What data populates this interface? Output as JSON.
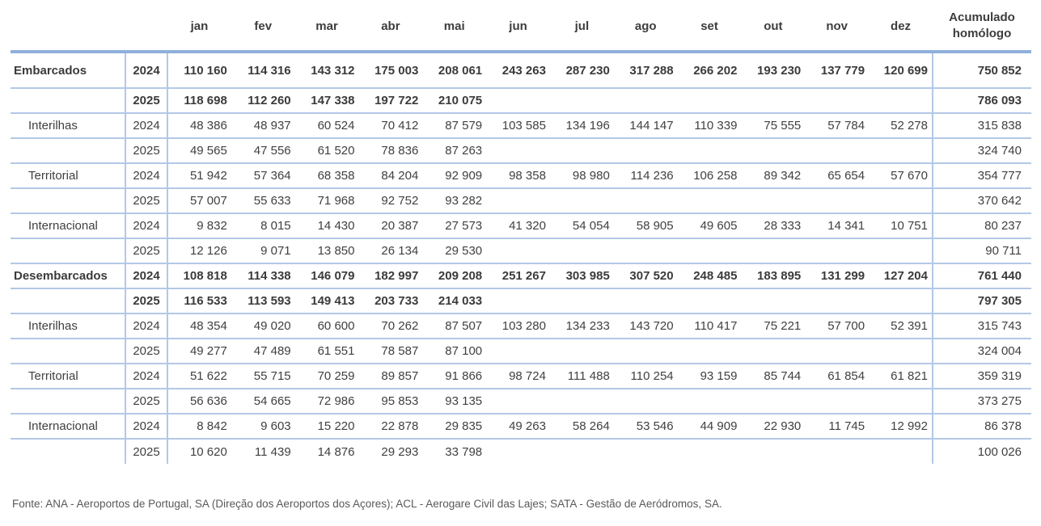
{
  "colors": {
    "border_thin": "#b3c8e6",
    "border_thick": "#8fafdb",
    "text": "#404040",
    "footer_text": "#595959",
    "background": "#ffffff"
  },
  "table": {
    "month_headers": [
      "jan",
      "fev",
      "mar",
      "abr",
      "mai",
      "jun",
      "jul",
      "ago",
      "set",
      "out",
      "nov",
      "dez"
    ],
    "accumulated_header": "Acumulado homólogo",
    "rows": [
      {
        "category": "Embarcados",
        "year": "2024",
        "bold": true,
        "sub": false,
        "values": [
          "110 160",
          "114 316",
          "143 312",
          "175 003",
          "208 061",
          "243 263",
          "287 230",
          "317 288",
          "266 202",
          "193 230",
          "137 779",
          "120 699"
        ],
        "accumulated": "750 852"
      },
      {
        "category": "",
        "year": "2025",
        "bold": true,
        "sub": false,
        "values": [
          "118 698",
          "112 260",
          "147 338",
          "197 722",
          "210 075"
        ],
        "accumulated": "786 093"
      },
      {
        "category": "Interilhas",
        "year": "2024",
        "bold": false,
        "sub": true,
        "values": [
          "48 386",
          "48 937",
          "60 524",
          "70 412",
          "87 579",
          "103 585",
          "134 196",
          "144 147",
          "110 339",
          "75 555",
          "57 784",
          "52 278"
        ],
        "accumulated": "315 838"
      },
      {
        "category": "",
        "year": "2025",
        "bold": false,
        "sub": true,
        "values": [
          "49 565",
          "47 556",
          "61 520",
          "78 836",
          "87 263"
        ],
        "accumulated": "324 740"
      },
      {
        "category": "Territorial",
        "year": "2024",
        "bold": false,
        "sub": true,
        "values": [
          "51 942",
          "57 364",
          "68 358",
          "84 204",
          "92 909",
          "98 358",
          "98 980",
          "114 236",
          "106 258",
          "89 342",
          "65 654",
          "57 670"
        ],
        "accumulated": "354 777"
      },
      {
        "category": "",
        "year": "2025",
        "bold": false,
        "sub": true,
        "values": [
          "57 007",
          "55 633",
          "71 968",
          "92 752",
          "93 282"
        ],
        "accumulated": "370 642"
      },
      {
        "category": "Internacional",
        "year": "2024",
        "bold": false,
        "sub": true,
        "values": [
          "9 832",
          "8 015",
          "14 430",
          "20 387",
          "27 573",
          "41 320",
          "54 054",
          "58 905",
          "49 605",
          "28 333",
          "14 341",
          "10 751"
        ],
        "accumulated": "80 237"
      },
      {
        "category": "",
        "year": "2025",
        "bold": false,
        "sub": true,
        "values": [
          "12 126",
          "9 071",
          "13 850",
          "26 134",
          "29 530"
        ],
        "accumulated": "90 711"
      },
      {
        "category": "Desembarcados",
        "year": "2024",
        "bold": true,
        "sub": false,
        "values": [
          "108 818",
          "114 338",
          "146 079",
          "182 997",
          "209 208",
          "251 267",
          "303 985",
          "307 520",
          "248 485",
          "183 895",
          "131 299",
          "127 204"
        ],
        "accumulated": "761 440"
      },
      {
        "category": "",
        "year": "2025",
        "bold": true,
        "sub": false,
        "values": [
          "116 533",
          "113 593",
          "149 413",
          "203 733",
          "214 033"
        ],
        "accumulated": "797 305"
      },
      {
        "category": "Interilhas",
        "year": "2024",
        "bold": false,
        "sub": true,
        "values": [
          "48 354",
          "49 020",
          "60 600",
          "70 262",
          "87 507",
          "103 280",
          "134 233",
          "143 720",
          "110 417",
          "75 221",
          "57 700",
          "52 391"
        ],
        "accumulated": "315 743"
      },
      {
        "category": "",
        "year": "2025",
        "bold": false,
        "sub": true,
        "values": [
          "49 277",
          "47 489",
          "61 551",
          "78 587",
          "87 100"
        ],
        "accumulated": "324 004"
      },
      {
        "category": "Territorial",
        "year": "2024",
        "bold": false,
        "sub": true,
        "values": [
          "51 622",
          "55 715",
          "70 259",
          "89 857",
          "91 866",
          "98 724",
          "111 488",
          "110 254",
          "93 159",
          "85 744",
          "61 854",
          "61 821"
        ],
        "accumulated": "359 319"
      },
      {
        "category": "",
        "year": "2025",
        "bold": false,
        "sub": true,
        "values": [
          "56 636",
          "54 665",
          "72 986",
          "95 853",
          "93 135"
        ],
        "accumulated": "373 275"
      },
      {
        "category": "Internacional",
        "year": "2024",
        "bold": false,
        "sub": true,
        "values": [
          "8 842",
          "9 603",
          "15 220",
          "22 878",
          "29 835",
          "49 263",
          "58 264",
          "53 546",
          "44 909",
          "22 930",
          "11 745",
          "12 992"
        ],
        "accumulated": "86 378"
      },
      {
        "category": "",
        "year": "2025",
        "bold": false,
        "sub": true,
        "values": [
          "10 620",
          "11 439",
          "14 876",
          "29 293",
          "33 798"
        ],
        "accumulated": "100 026"
      }
    ]
  },
  "footer": {
    "source": "Fonte: ANA - Aeroportos de Portugal, SA (Direção dos Aeroportos dos Açores); ACL - Aerogare Civil das Lajes; SATA - Gestão de Aeródromos, SA."
  }
}
